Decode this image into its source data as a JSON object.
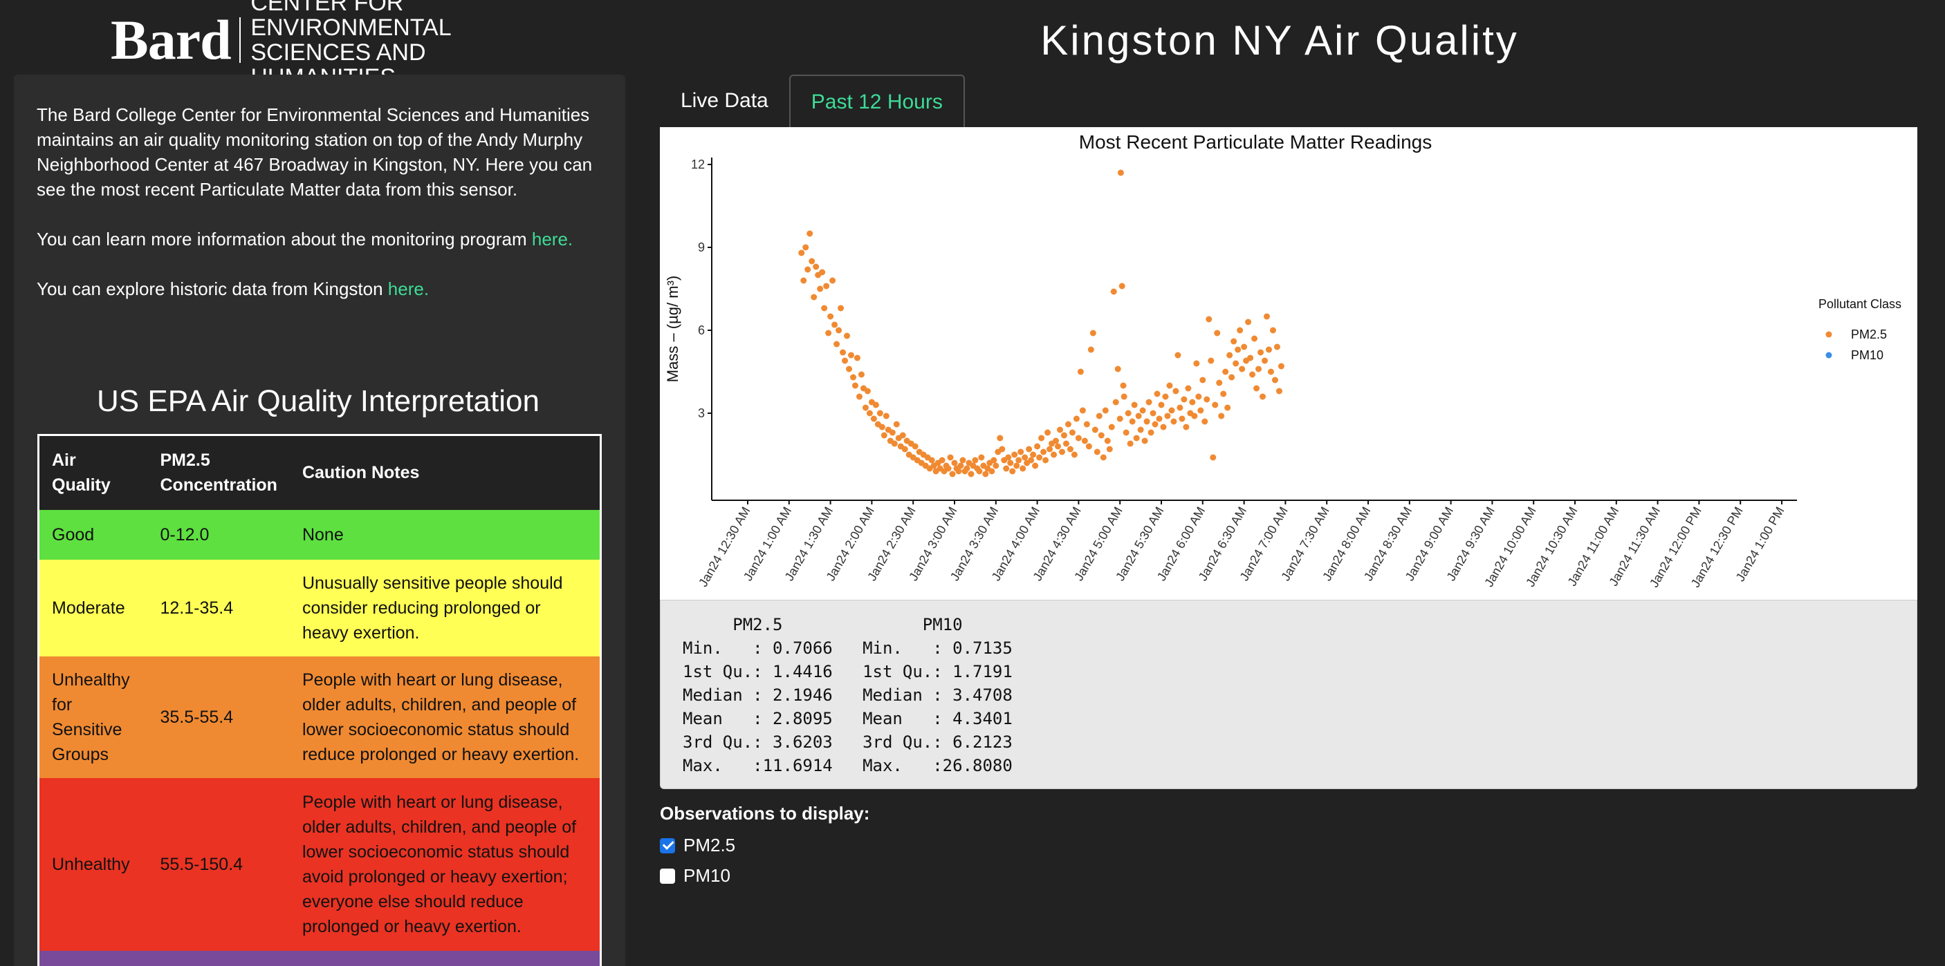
{
  "logo": {
    "word": "Bard",
    "line1": "CENTER FOR ENVIRONMENTAL",
    "line2": "SCIENCES AND HUMANITIES"
  },
  "sidebar": {
    "intro": "The Bard College Center for Environmental Sciences and Humanities maintains an air quality monitoring station on top of the Andy Murphy Neighborhood Center at 467 Broadway in Kingston, NY. Here you can see the most recent Particulate Matter data from this sensor.",
    "learn_text": "You can learn more information about the monitoring program ",
    "learn_link": "here.",
    "explore_text": "You can explore historic data from Kingston ",
    "explore_link": "here.",
    "epa_title": "US EPA Air Quality Interpretation",
    "table_headers": [
      "Air Quality",
      "PM2.5 Concentration",
      "Caution Notes"
    ],
    "rows": [
      {
        "quality": "Good",
        "range": "0-12.0",
        "notes": "None",
        "color": "#5ee040"
      },
      {
        "quality": "Moderate",
        "range": "12.1-35.4",
        "notes": "Unusually sensitive people should consider reducing prolonged or heavy exertion.",
        "color": "#ffff55"
      },
      {
        "quality": "Unhealthy for Sensitive Groups",
        "range": "35.5-55.4",
        "notes": "People with heart or lung disease, older adults, children, and people of lower socioeconomic status should reduce prolonged or heavy exertion.",
        "color": "#f08a32"
      },
      {
        "quality": "Unhealthy",
        "range": "55.5-150.4",
        "notes": "People with heart or lung disease, older adults, children, and people of lower socioeconomic status should avoid prolonged or heavy exertion; everyone else should reduce prolonged or heavy exertion.",
        "color": "#ea3323"
      },
      {
        "quality": "",
        "range": "",
        "notes": "",
        "color": "#7a4a9a"
      }
    ]
  },
  "main": {
    "title": "Kingston NY Air Quality",
    "tabs": [
      {
        "label": "Live Data",
        "active": false
      },
      {
        "label": "Past 12 Hours",
        "active": true
      }
    ]
  },
  "chart_data": {
    "type": "scatter",
    "title": "Most Recent Particulate Matter Readings",
    "ylabel": "Mass – (µg/ m³)",
    "xlabel": "",
    "ylim": [
      0,
      12
    ],
    "yticks": [
      3,
      6,
      9,
      12
    ],
    "xticks": [
      "Jan24 12:30 AM",
      "Jan24 1:00 AM",
      "Jan24 1:30 AM",
      "Jan24 2:00 AM",
      "Jan24 2:30 AM",
      "Jan24 3:00 AM",
      "Jan24 3:30 AM",
      "Jan24 4:00 AM",
      "Jan24 4:30 AM",
      "Jan24 5:00 AM",
      "Jan24 5:30 AM",
      "Jan24 6:00 AM",
      "Jan24 6:30 AM",
      "Jan24 7:00 AM",
      "Jan24 7:30 AM",
      "Jan24 8:00 AM",
      "Jan24 8:30 AM",
      "Jan24 9:00 AM",
      "Jan24 9:30 AM",
      "Jan24 10:00 AM",
      "Jan24 10:30 AM",
      "Jan24 11:00 AM",
      "Jan24 11:30 AM",
      "Jan24 12:00 PM",
      "Jan24 12:30 PM",
      "Jan24 1:00 PM"
    ],
    "legend_title": "Pollutant Class",
    "legend_position": "right",
    "grid": false,
    "series": [
      {
        "name": "PM2.5",
        "color": "#f08a32",
        "points": [
          [
            1.3,
            8.8
          ],
          [
            1.35,
            7.8
          ],
          [
            1.4,
            9.0
          ],
          [
            1.45,
            8.2
          ],
          [
            1.5,
            9.5
          ],
          [
            1.55,
            8.5
          ],
          [
            1.6,
            7.2
          ],
          [
            1.65,
            8.3
          ],
          [
            1.7,
            8.0
          ],
          [
            1.75,
            7.5
          ],
          [
            1.8,
            8.1
          ],
          [
            1.85,
            6.8
          ],
          [
            1.9,
            7.6
          ],
          [
            1.95,
            5.9
          ],
          [
            2.0,
            6.5
          ],
          [
            2.05,
            7.8
          ],
          [
            2.1,
            6.2
          ],
          [
            2.15,
            5.5
          ],
          [
            2.2,
            6.0
          ],
          [
            2.25,
            6.8
          ],
          [
            2.3,
            5.2
          ],
          [
            2.35,
            4.9
          ],
          [
            2.4,
            5.8
          ],
          [
            2.45,
            4.6
          ],
          [
            2.5,
            5.1
          ],
          [
            2.55,
            4.3
          ],
          [
            2.6,
            4.0
          ],
          [
            2.65,
            5.0
          ],
          [
            2.7,
            3.6
          ],
          [
            2.75,
            4.4
          ],
          [
            2.8,
            3.9
          ],
          [
            2.85,
            3.2
          ],
          [
            2.9,
            3.8
          ],
          [
            2.95,
            3.0
          ],
          [
            3.0,
            3.4
          ],
          [
            3.05,
            2.8
          ],
          [
            3.1,
            3.3
          ],
          [
            3.15,
            2.6
          ],
          [
            3.2,
            3.0
          ],
          [
            3.25,
            2.5
          ],
          [
            3.3,
            2.2
          ],
          [
            3.35,
            2.9
          ],
          [
            3.4,
            2.4
          ],
          [
            3.45,
            2.0
          ],
          [
            3.5,
            2.3
          ],
          [
            3.55,
            1.9
          ],
          [
            3.6,
            2.6
          ],
          [
            3.65,
            2.1
          ],
          [
            3.7,
            1.8
          ],
          [
            3.75,
            2.2
          ],
          [
            3.8,
            1.7
          ],
          [
            3.85,
            2.0
          ],
          [
            3.9,
            1.5
          ],
          [
            3.95,
            1.9
          ],
          [
            4.0,
            1.4
          ],
          [
            4.05,
            1.8
          ],
          [
            4.1,
            1.3
          ],
          [
            4.15,
            1.6
          ],
          [
            4.2,
            1.2
          ],
          [
            4.25,
            1.5
          ],
          [
            4.3,
            1.1
          ],
          [
            4.35,
            1.4
          ],
          [
            4.4,
            1.0
          ],
          [
            4.45,
            1.3
          ],
          [
            4.5,
            1.1
          ],
          [
            4.55,
            0.9
          ],
          [
            4.6,
            1.2
          ],
          [
            4.65,
            1.0
          ],
          [
            4.7,
            1.3
          ],
          [
            4.75,
            0.9
          ],
          [
            4.8,
            1.1
          ],
          [
            4.85,
            1.0
          ],
          [
            4.9,
            1.4
          ],
          [
            4.95,
            0.8
          ],
          [
            5.0,
            1.2
          ],
          [
            5.05,
            1.0
          ],
          [
            5.1,
            0.9
          ],
          [
            5.15,
            1.1
          ],
          [
            5.2,
            1.3
          ],
          [
            5.25,
            0.9
          ],
          [
            5.3,
            1.0
          ],
          [
            5.35,
            1.2
          ],
          [
            5.4,
            0.8
          ],
          [
            5.45,
            1.1
          ],
          [
            5.5,
            1.3
          ],
          [
            5.55,
            1.0
          ],
          [
            5.6,
            0.9
          ],
          [
            5.65,
            1.4
          ],
          [
            5.7,
            1.1
          ],
          [
            5.75,
            0.8
          ],
          [
            5.8,
            1.0
          ],
          [
            5.85,
            1.2
          ],
          [
            5.9,
            0.9
          ],
          [
            5.95,
            1.3
          ],
          [
            6.0,
            1.1
          ],
          [
            6.05,
            1.6
          ],
          [
            6.1,
            2.1
          ],
          [
            6.15,
            1.7
          ],
          [
            6.2,
            1.3
          ],
          [
            6.25,
            1.0
          ],
          [
            6.3,
            1.4
          ],
          [
            6.35,
            1.2
          ],
          [
            6.4,
            0.9
          ],
          [
            6.45,
            1.5
          ],
          [
            6.5,
            1.1
          ],
          [
            6.55,
            1.3
          ],
          [
            6.6,
            1.6
          ],
          [
            6.65,
            1.0
          ],
          [
            6.7,
            1.4
          ],
          [
            6.75,
            1.2
          ],
          [
            6.8,
            1.7
          ],
          [
            6.85,
            1.3
          ],
          [
            6.9,
            1.5
          ],
          [
            6.95,
            1.1
          ],
          [
            7.0,
            1.8
          ],
          [
            7.05,
            1.4
          ],
          [
            7.1,
            2.1
          ],
          [
            7.15,
            1.6
          ],
          [
            7.2,
            1.3
          ],
          [
            7.25,
            2.3
          ],
          [
            7.3,
            1.7
          ],
          [
            7.35,
            1.9
          ],
          [
            7.4,
            1.5
          ],
          [
            7.45,
            2.0
          ],
          [
            7.5,
            1.8
          ],
          [
            7.55,
            2.4
          ],
          [
            7.6,
            1.6
          ],
          [
            7.65,
            2.2
          ],
          [
            7.7,
            1.9
          ],
          [
            7.75,
            2.6
          ],
          [
            7.8,
            1.7
          ],
          [
            7.85,
            2.3
          ],
          [
            7.9,
            1.5
          ],
          [
            7.95,
            2.8
          ],
          [
            8.0,
            2.1
          ],
          [
            8.05,
            4.5
          ],
          [
            8.1,
            3.1
          ],
          [
            8.15,
            2.0
          ],
          [
            8.2,
            2.6
          ],
          [
            8.25,
            1.8
          ],
          [
            8.3,
            5.3
          ],
          [
            8.35,
            5.9
          ],
          [
            8.4,
            2.4
          ],
          [
            8.45,
            1.6
          ],
          [
            8.5,
            2.9
          ],
          [
            8.55,
            2.2
          ],
          [
            8.6,
            1.4
          ],
          [
            8.65,
            3.1
          ],
          [
            8.7,
            2.0
          ],
          [
            8.75,
            1.7
          ],
          [
            8.8,
            2.5
          ],
          [
            8.85,
            7.4
          ],
          [
            8.9,
            3.4
          ],
          [
            8.95,
            4.6
          ],
          [
            9.0,
            2.8
          ],
          [
            9.02,
            11.7
          ],
          [
            9.05,
            7.6
          ],
          [
            9.08,
            4.0
          ],
          [
            9.1,
            3.6
          ],
          [
            9.15,
            2.3
          ],
          [
            9.2,
            3.0
          ],
          [
            9.25,
            1.9
          ],
          [
            9.3,
            2.7
          ],
          [
            9.35,
            3.3
          ],
          [
            9.4,
            2.1
          ],
          [
            9.45,
            2.9
          ],
          [
            9.5,
            2.4
          ],
          [
            9.55,
            3.1
          ],
          [
            9.6,
            2.0
          ],
          [
            9.65,
            2.7
          ],
          [
            9.7,
            3.4
          ],
          [
            9.75,
            2.3
          ],
          [
            9.8,
            3.0
          ],
          [
            9.85,
            2.6
          ],
          [
            9.9,
            3.7
          ],
          [
            9.95,
            2.8
          ],
          [
            10.0,
            3.3
          ],
          [
            10.05,
            2.5
          ],
          [
            10.1,
            3.6
          ],
          [
            10.15,
            2.9
          ],
          [
            10.2,
            4.0
          ],
          [
            10.25,
            3.1
          ],
          [
            10.3,
            2.7
          ],
          [
            10.35,
            3.8
          ],
          [
            10.4,
            5.1
          ],
          [
            10.45,
            3.2
          ],
          [
            10.5,
            2.8
          ],
          [
            10.55,
            3.5
          ],
          [
            10.6,
            2.5
          ],
          [
            10.65,
            3.9
          ],
          [
            10.7,
            3.0
          ],
          [
            10.75,
            3.4
          ],
          [
            10.8,
            2.9
          ],
          [
            10.85,
            4.8
          ],
          [
            10.9,
            3.6
          ],
          [
            10.95,
            3.1
          ],
          [
            11.0,
            4.2
          ],
          [
            11.05,
            2.7
          ],
          [
            11.1,
            3.5
          ],
          [
            11.15,
            6.4
          ],
          [
            11.2,
            4.9
          ],
          [
            11.25,
            1.4
          ],
          [
            11.3,
            3.3
          ],
          [
            11.35,
            5.9
          ],
          [
            11.4,
            4.1
          ],
          [
            11.45,
            2.9
          ],
          [
            11.5,
            3.7
          ],
          [
            11.55,
            4.5
          ],
          [
            11.6,
            3.2
          ],
          [
            11.65,
            5.1
          ],
          [
            11.7,
            4.3
          ],
          [
            11.75,
            5.6
          ],
          [
            11.8,
            4.8
          ],
          [
            11.85,
            5.3
          ],
          [
            11.9,
            6.0
          ],
          [
            11.95,
            4.6
          ],
          [
            12.0,
            5.4
          ],
          [
            12.05,
            4.9
          ],
          [
            12.1,
            6.3
          ],
          [
            12.15,
            5.0
          ],
          [
            12.2,
            4.4
          ],
          [
            12.25,
            5.7
          ],
          [
            12.3,
            3.9
          ],
          [
            12.35,
            4.6
          ],
          [
            12.4,
            5.2
          ],
          [
            12.45,
            3.6
          ],
          [
            12.5,
            4.9
          ],
          [
            12.55,
            6.5
          ],
          [
            12.6,
            5.3
          ],
          [
            12.65,
            4.5
          ],
          [
            12.7,
            6.0
          ],
          [
            12.75,
            4.2
          ],
          [
            12.8,
            5.4
          ],
          [
            12.85,
            3.8
          ],
          [
            12.9,
            4.7
          ]
        ]
      },
      {
        "name": "PM10",
        "color": "#3a8ee6",
        "points": []
      }
    ]
  },
  "summary": {
    "text": "     PM2.5              PM10        \nMin.   : 0.7066   Min.   : 0.7135  \n1st Qu.: 1.4416   1st Qu.: 1.7191  \nMedian : 2.1946   Median : 3.4708  \nMean   : 2.8095   Mean   : 4.3401  \n3rd Qu.: 3.6203   3rd Qu.: 6.2123  \nMax.   :11.6914   Max.   :26.8080  "
  },
  "observations": {
    "title": "Observations to display:",
    "options": [
      {
        "label": "PM2.5",
        "checked": true
      },
      {
        "label": "PM10",
        "checked": false
      }
    ]
  }
}
